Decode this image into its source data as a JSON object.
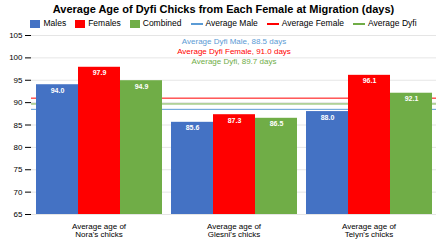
{
  "chart_data": {
    "type": "bar",
    "title": "Average Age of Dyfi Chicks from Each Female at Migration (days)",
    "categories": [
      "Average age of Nora's chicks",
      "Average age of Glesni's chicks",
      "Average age of Telyn's chicks"
    ],
    "series": [
      {
        "name": "Males",
        "color": "#4472C4",
        "values": [
          94.0,
          85.6,
          88.0
        ],
        "value_labels": [
          "94.0",
          "85.6",
          "88.0"
        ]
      },
      {
        "name": "Females",
        "color": "#FF0000",
        "values": [
          97.9,
          87.3,
          96.1
        ],
        "value_labels": [
          "97.9",
          "87.3",
          "96.1"
        ]
      },
      {
        "name": "Combined",
        "color": "#70AD47",
        "values": [
          94.9,
          86.5,
          92.1
        ],
        "value_labels": [
          "94.9",
          "86.5",
          "92.1"
        ]
      }
    ],
    "reference_lines": [
      {
        "name": "Average Male",
        "value": 88.5,
        "color": "#5B9BD5"
      },
      {
        "name": "Average Female",
        "value": 91.0,
        "color": "#FF0000"
      },
      {
        "name": "Average Dyfi",
        "value": 89.7,
        "color": "#70AD47"
      }
    ],
    "annotations": [
      {
        "text": "Average Dyfi Male, 88.5 days",
        "color": "#5B9BD5"
      },
      {
        "text": "Average Dyfi Female, 91.0 days",
        "color": "#FF0000"
      },
      {
        "text": "Average Dyfi, 89.7 days",
        "color": "#70AD47"
      }
    ],
    "ylim": [
      65,
      105
    ],
    "yticks": [
      65,
      70,
      75,
      80,
      85,
      90,
      95,
      100,
      105
    ],
    "grid": true,
    "data_labels": true,
    "legend": "top"
  }
}
